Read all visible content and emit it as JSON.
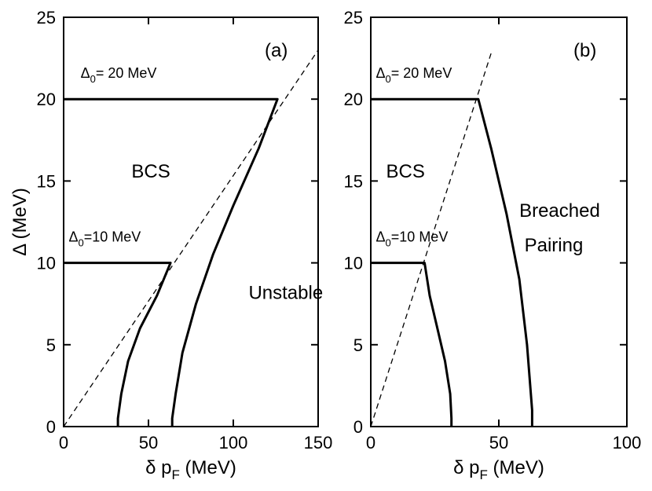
{
  "chart_data": [
    {
      "type": "line",
      "panel_label": "(a)",
      "xlabel_symbol": "δ p",
      "xlabel_sub": "F",
      "xlabel_unit": "(MeV)",
      "ylabel": "Δ (MeV)",
      "xlim": [
        0,
        150
      ],
      "ylim": [
        0,
        25
      ],
      "xticks": [
        "0",
        "50",
        "100",
        "150"
      ],
      "xtick_values": [
        0,
        50,
        100,
        150
      ],
      "yticks": [
        "0",
        "5",
        "10",
        "15",
        "20",
        "25"
      ],
      "ytick_values": [
        0,
        5,
        10,
        15,
        20,
        25
      ],
      "annotations": [
        {
          "text": "BCS",
          "x": 40,
          "y": 15.2
        },
        {
          "text": "Unstable",
          "x": 109,
          "y": 7.8
        }
      ],
      "delta_labels": [
        {
          "sym": "Δ",
          "sub": "0",
          "text": "= 20 MeV",
          "x": 10,
          "y": 21.3
        },
        {
          "sym": "Δ",
          "sub": "0",
          "text": "=10 MeV",
          "x": 3,
          "y": 11.3
        }
      ],
      "series": [
        {
          "style": "dashed",
          "x": [
            0,
            150
          ],
          "y": [
            0,
            23
          ]
        },
        {
          "style": "solid",
          "x": [
            0,
            63,
            55,
            45,
            38,
            34,
            32,
            32
          ],
          "y": [
            10,
            10,
            8,
            6,
            4,
            2,
            0.5,
            0
          ]
        },
        {
          "style": "solid",
          "x": [
            0,
            126,
            115,
            100,
            88,
            78,
            70,
            66,
            64,
            64
          ],
          "y": [
            20,
            20,
            17,
            13.5,
            10.5,
            7.5,
            4.5,
            2,
            0.5,
            0
          ]
        }
      ]
    },
    {
      "type": "line",
      "panel_label": "(b)",
      "xlabel_symbol": "δ p",
      "xlabel_sub": "F",
      "xlabel_unit": "(MeV)",
      "ylabel": "",
      "xlim": [
        0,
        100
      ],
      "ylim": [
        0,
        25
      ],
      "xticks": [
        "0",
        "50",
        "100"
      ],
      "xtick_values": [
        0,
        50,
        100
      ],
      "yticks": [
        "0",
        "5",
        "10",
        "15",
        "20",
        "25"
      ],
      "ytick_values": [
        0,
        5,
        10,
        15,
        20,
        25
      ],
      "annotations": [
        {
          "text": "BCS",
          "x": 6,
          "y": 15.2
        },
        {
          "text": "Breached",
          "x": 58,
          "y": 12.8
        },
        {
          "text": "Pairing",
          "x": 60,
          "y": 10.7
        }
      ],
      "delta_labels": [
        {
          "sym": "Δ",
          "sub": "0",
          "text": "= 20 MeV",
          "x": 2,
          "y": 21.3
        },
        {
          "sym": "Δ",
          "sub": "0",
          "text": "=10 MeV",
          "x": 2,
          "y": 11.3
        }
      ],
      "series": [
        {
          "style": "dashed",
          "x": [
            0,
            47
          ],
          "y": [
            0,
            22.8
          ]
        },
        {
          "style": "solid",
          "x": [
            0,
            21,
            23,
            26,
            29,
            31,
            31.5,
            31.5
          ],
          "y": [
            10,
            10,
            8,
            6,
            4,
            2,
            0.5,
            0
          ]
        },
        {
          "style": "solid",
          "x": [
            0,
            42,
            47,
            53,
            58,
            61,
            63,
            63
          ],
          "y": [
            20,
            20,
            17,
            13,
            9,
            5,
            1,
            0
          ]
        }
      ]
    }
  ]
}
